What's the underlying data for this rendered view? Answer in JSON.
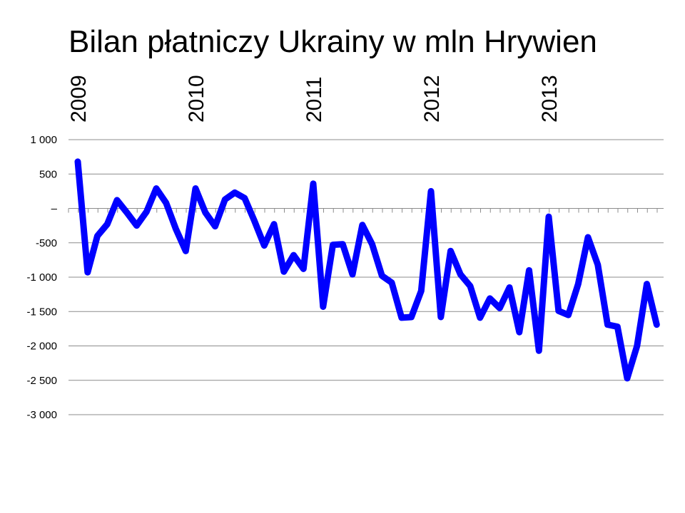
{
  "chart_data": {
    "type": "line",
    "title": "Bilan płatniczy Ukrainy w mln Hrywien",
    "xlabel": "",
    "ylabel": "",
    "ylim": [
      -3000,
      1000
    ],
    "y_ticks": [
      {
        "value": 1000,
        "label": "1 000"
      },
      {
        "value": 500,
        "label": "500"
      },
      {
        "value": 0,
        "label": "–"
      },
      {
        "value": -500,
        "label": "-500"
      },
      {
        "value": -1000,
        "label": "-1 000"
      },
      {
        "value": -1500,
        "label": "-1 500"
      },
      {
        "value": -2000,
        "label": "-2 000"
      },
      {
        "value": -2500,
        "label": "-2 500"
      },
      {
        "value": -3000,
        "label": "-3 000"
      }
    ],
    "year_labels": [
      {
        "index": 0,
        "label": "2009"
      },
      {
        "index": 12,
        "label": "2010"
      },
      {
        "index": 24,
        "label": "2011"
      },
      {
        "index": 36,
        "label": "2012"
      },
      {
        "index": 48,
        "label": "2013"
      }
    ],
    "grid": true,
    "legend": "none",
    "line_color": "#0000ff",
    "series": [
      {
        "values": [
          680,
          -930,
          -400,
          -230,
          120,
          -60,
          -250,
          -50,
          290,
          80,
          -300,
          -620,
          290,
          -60,
          -260,
          130,
          230,
          150,
          -180,
          -540,
          -230,
          -920,
          -680,
          -880,
          360,
          -1430,
          -530,
          -520,
          -960,
          -240,
          -520,
          -980,
          -1080,
          -1590,
          -1580,
          -1200,
          250,
          -1580,
          -620,
          -960,
          -1130,
          -1590,
          -1310,
          -1450,
          -1150,
          -1800,
          -900,
          -2070,
          -120,
          -1490,
          -1550,
          -1100,
          -420,
          -820,
          -1690,
          -1720,
          -2470,
          -2000,
          -1100,
          -1690
        ]
      }
    ]
  }
}
